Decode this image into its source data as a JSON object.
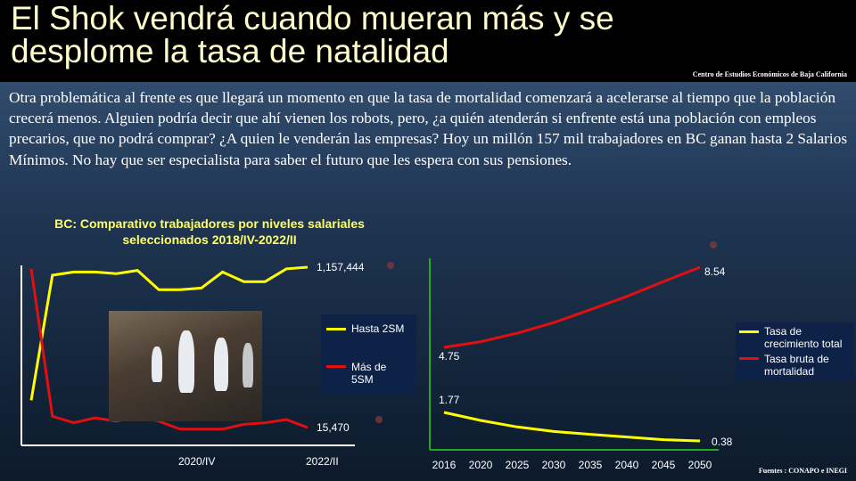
{
  "slide": {
    "title": "El Shok vendrá cuando mueran más y se desplome la tasa de natalidad",
    "source_top": "Centro de Estudios Económicos de Baja California",
    "body": "Otra problemática al frente es que llegará un momento en que la tasa de mortalidad comenzará a acelerarse al tiempo que la población crecerá menos. Alguien podría decir que ahí vienen los robots, pero, ¿a quién atenderán si enfrente está una población con empleos precarios, que no podrá comprar? ¿A quien le venderán las empresas? Hoy un millón 157 mil trabajadores en BC ganan hasta 2 Salarios Mínimos. No hay que ser especialista para saber el futuro que les espera con sus pensiones.",
    "source_bottom": "Fuentes : CONAPO e INEGI",
    "photo_icon": "robot-photo"
  },
  "colors": {
    "yellow": "#ffff00",
    "red": "#e01010",
    "axis_green": "#22aa22",
    "axis_white": "#ffffff"
  },
  "chart_data": [
    {
      "type": "line",
      "title": "BC: Comparativo trabajadores por niveles salariales seleccionados 2018/IV-2022/II",
      "x_tick_labels": [
        "2020/IV",
        "2022/II"
      ],
      "series": [
        {
          "name": "Hasta 2SM",
          "values": [
            0.17,
            0.95,
            0.97,
            0.97,
            0.96,
            0.98,
            0.86,
            0.86,
            0.87,
            0.97,
            0.91,
            0.91,
            0.99,
            1.0
          ],
          "last_label": "1,157,444"
        },
        {
          "name": "Más de 5SM",
          "values": [
            0.99,
            0.07,
            0.03,
            0.06,
            0.04,
            0.07,
            0.04,
            -0.01,
            -0.01,
            -0.01,
            0.02,
            0.03,
            0.05,
            0.0
          ],
          "last_label": "15,470"
        }
      ],
      "legend": "right"
    },
    {
      "type": "line",
      "x": [
        "2016",
        "2020",
        "2025",
        "2030",
        "2035",
        "2040",
        "2045",
        "2050"
      ],
      "series": [
        {
          "name": "Tasa de crecimiento total",
          "values": [
            1.77,
            1.38,
            1.06,
            0.84,
            0.7,
            0.57,
            0.44,
            0.38
          ],
          "first_label": "1.77",
          "last_label": "0.38"
        },
        {
          "name": "Tasa bruta de mortalidad",
          "values": [
            4.75,
            5.02,
            5.42,
            5.92,
            6.53,
            7.16,
            7.86,
            8.54
          ],
          "first_label": "4.75",
          "last_label": "8.54"
        }
      ],
      "legend": "right"
    }
  ]
}
